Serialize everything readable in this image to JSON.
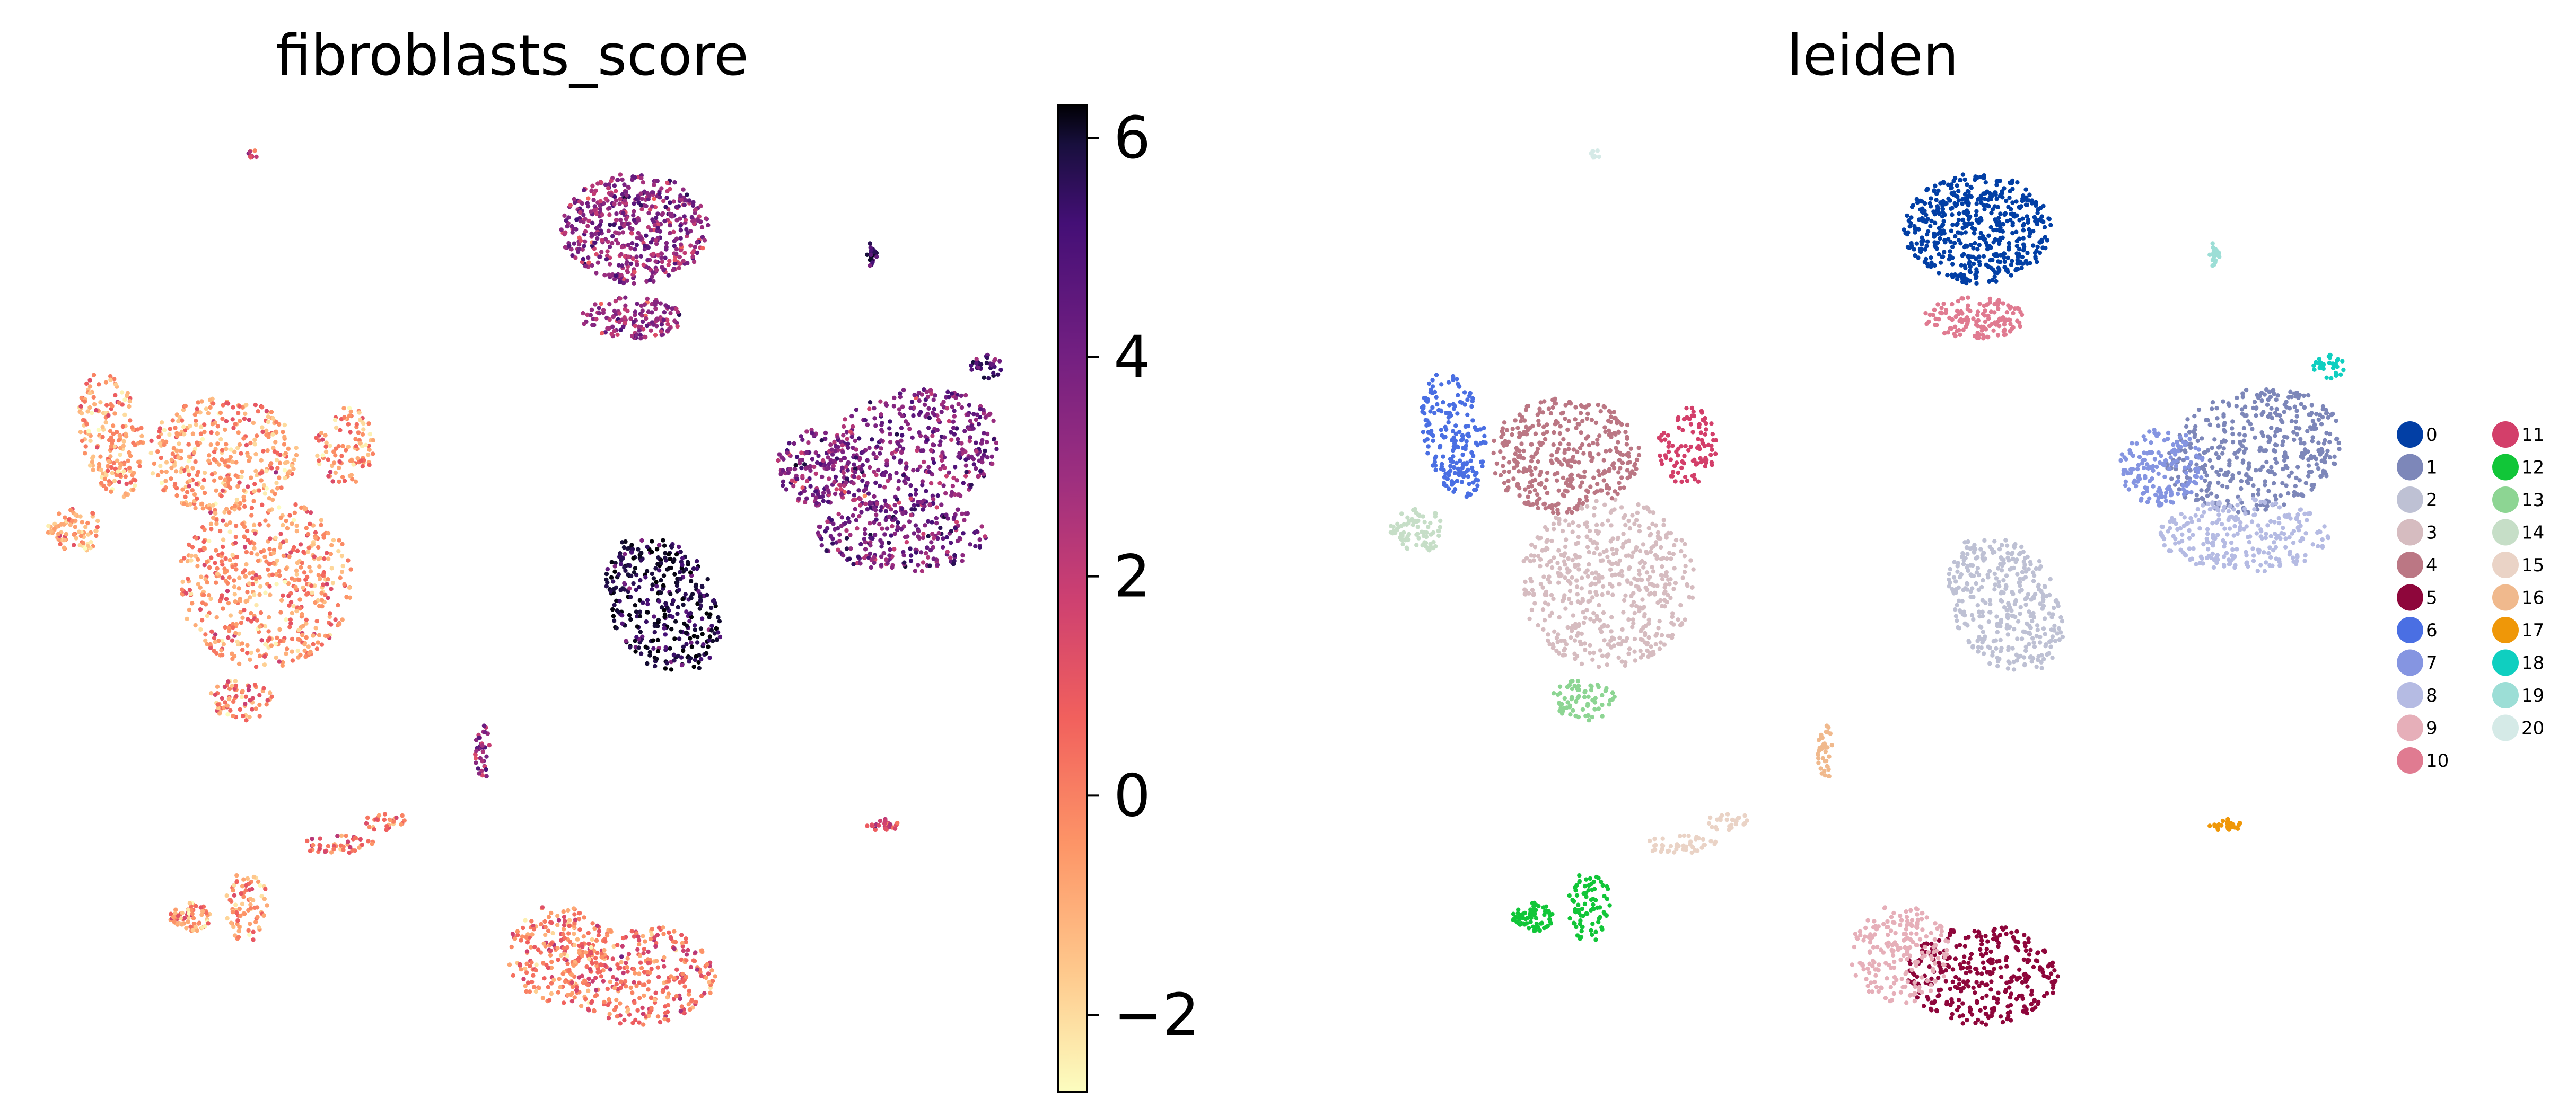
{
  "chart_data": [
    {
      "type": "scatter",
      "title": "fibroblasts_score",
      "colormap": "magma_r",
      "colorbar": {
        "vmin": -2.7,
        "vmax": 6.3,
        "ticks": [
          6,
          4,
          2,
          0,
          -2
        ],
        "tick_labels": [
          "6",
          "4",
          "2",
          "0",
          "−2"
        ]
      },
      "clusters": [
        {
          "id": "0",
          "score": 2.6
        },
        {
          "id": "1",
          "score": 3.0
        },
        {
          "id": "2",
          "score": 5.2
        },
        {
          "id": "3",
          "score": -0.6
        },
        {
          "id": "4",
          "score": -0.8
        },
        {
          "id": "5",
          "score": 0.1
        },
        {
          "id": "6",
          "score": -0.8
        },
        {
          "id": "7",
          "score": 2.8
        },
        {
          "id": "8",
          "score": 3.2
        },
        {
          "id": "9",
          "score": -0.3
        },
        {
          "id": "10",
          "score": 2.4
        },
        {
          "id": "11",
          "score": -0.8
        },
        {
          "id": "12",
          "score": -0.7
        },
        {
          "id": "13",
          "score": -0.3
        },
        {
          "id": "14",
          "score": -0.9
        },
        {
          "id": "15",
          "score": 0.0
        },
        {
          "id": "16",
          "score": 2.7
        },
        {
          "id": "17",
          "score": 1.0
        },
        {
          "id": "18",
          "score": 4.0
        },
        {
          "id": "19",
          "score": 4.6
        },
        {
          "id": "20",
          "score": 1.0
        }
      ],
      "grid": false
    },
    {
      "type": "scatter",
      "title": "leiden",
      "legend": {
        "placement": "right",
        "entries": [
          {
            "label": "0",
            "color": "#023fa5"
          },
          {
            "label": "1",
            "color": "#7d87b9"
          },
          {
            "label": "2",
            "color": "#bec1d4"
          },
          {
            "label": "3",
            "color": "#d6bcc0"
          },
          {
            "label": "4",
            "color": "#bb7784"
          },
          {
            "label": "5",
            "color": "#8e063b"
          },
          {
            "label": "6",
            "color": "#4a6fe3"
          },
          {
            "label": "7",
            "color": "#8595e1"
          },
          {
            "label": "8",
            "color": "#b5bbe3"
          },
          {
            "label": "9",
            "color": "#e6afb9"
          },
          {
            "label": "10",
            "color": "#e07b91"
          },
          {
            "label": "11",
            "color": "#d33f6a"
          },
          {
            "label": "12",
            "color": "#11c638"
          },
          {
            "label": "13",
            "color": "#8dd593"
          },
          {
            "label": "14",
            "color": "#c6dec7"
          },
          {
            "label": "15",
            "color": "#ead3c6"
          },
          {
            "label": "16",
            "color": "#f0b98d"
          },
          {
            "label": "17",
            "color": "#ef9708"
          },
          {
            "label": "18",
            "color": "#0fcfc0"
          },
          {
            "label": "19",
            "color": "#9cded6"
          },
          {
            "label": "20",
            "color": "#d5eae7"
          }
        ]
      },
      "grid": false
    }
  ]
}
